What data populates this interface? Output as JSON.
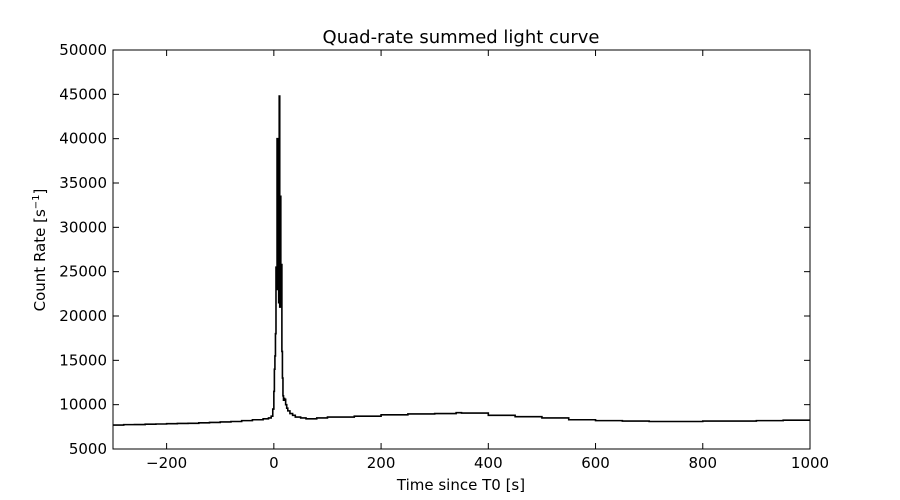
{
  "chart_data": {
    "type": "line",
    "title": "Quad-rate summed light curve",
    "xlabel": "Time since T0 [s]",
    "ylabel_main": "Count Rate [s",
    "ylabel_sup": "−1",
    "ylabel_end": "]",
    "xlim": [
      -300,
      1000
    ],
    "ylim": [
      5000,
      50000
    ],
    "xticks": [
      -200,
      0,
      200,
      400,
      600,
      800,
      1000
    ],
    "xtick_labels": [
      "−200",
      "0",
      "200",
      "400",
      "600",
      "800",
      "1000"
    ],
    "yticks": [
      5000,
      10000,
      15000,
      20000,
      25000,
      30000,
      35000,
      40000,
      45000,
      50000
    ],
    "ytick_labels": [
      "5000",
      "10000",
      "15000",
      "20000",
      "25000",
      "30000",
      "35000",
      "40000",
      "45000",
      "50000"
    ],
    "grid": false,
    "line_color": "#000000",
    "series": [
      {
        "x": [
          -300,
          -280,
          -260,
          -240,
          -220,
          -200,
          -180,
          -160,
          -140,
          -120,
          -100,
          -80,
          -60,
          -40,
          -20,
          -10,
          -5,
          -2,
          0,
          1,
          2,
          3,
          4,
          5,
          6,
          7,
          8,
          9,
          10,
          11,
          12,
          13,
          14,
          15,
          16,
          17,
          18,
          19,
          20,
          22,
          24,
          26,
          30,
          35,
          40,
          50,
          60,
          80,
          100,
          150,
          200,
          250,
          300,
          340,
          350,
          400,
          450,
          500,
          550,
          600,
          650,
          700,
          750,
          800,
          850,
          900,
          950,
          1000
        ],
        "y": [
          7700,
          7750,
          7760,
          7800,
          7820,
          7850,
          7880,
          7900,
          7950,
          8000,
          8050,
          8100,
          8200,
          8300,
          8400,
          8500,
          8700,
          9500,
          11500,
          14000,
          15500,
          18000,
          25500,
          23000,
          40000,
          26500,
          27000,
          21500,
          44800,
          21000,
          33500,
          25500,
          25800,
          16000,
          13000,
          11000,
          10500,
          10700,
          10600,
          10000,
          9600,
          9300,
          9000,
          8800,
          8600,
          8500,
          8400,
          8500,
          8600,
          8700,
          8850,
          8950,
          9000,
          9100,
          9050,
          8800,
          8650,
          8500,
          8300,
          8200,
          8150,
          8100,
          8100,
          8150,
          8150,
          8200,
          8250,
          8250
        ]
      }
    ]
  }
}
